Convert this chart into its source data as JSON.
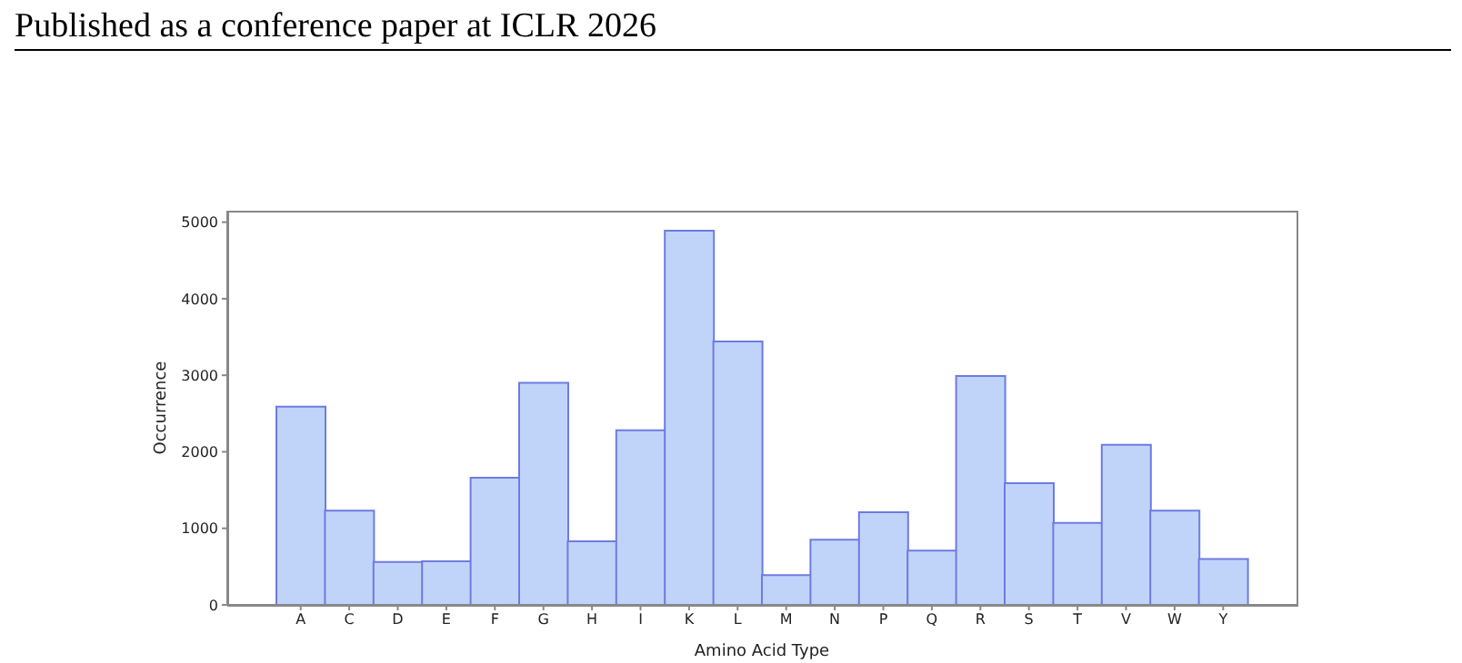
{
  "chart_data": {
    "type": "bar",
    "xlabel": "Amino Acid Type",
    "ylabel": "Occurrence",
    "annotations": [
      "Published as a conference paper at ICLR 2026"
    ],
    "categories": [
      "A",
      "C",
      "D",
      "E",
      "F",
      "G",
      "H",
      "I",
      "K",
      "L",
      "M",
      "N",
      "P",
      "Q",
      "R",
      "S",
      "T",
      "V",
      "W",
      "Y"
    ],
    "values": [
      2590,
      1230,
      560,
      570,
      1660,
      2900,
      830,
      2280,
      4890,
      3440,
      390,
      850,
      1210,
      710,
      2990,
      1590,
      1070,
      2090,
      1230,
      600
    ],
    "color": "#c0d4fa",
    "ylim": [
      0,
      5150
    ],
    "yticks": [
      0,
      1000,
      2000,
      3000,
      4000,
      5000
    ],
    "grid": false
  }
}
